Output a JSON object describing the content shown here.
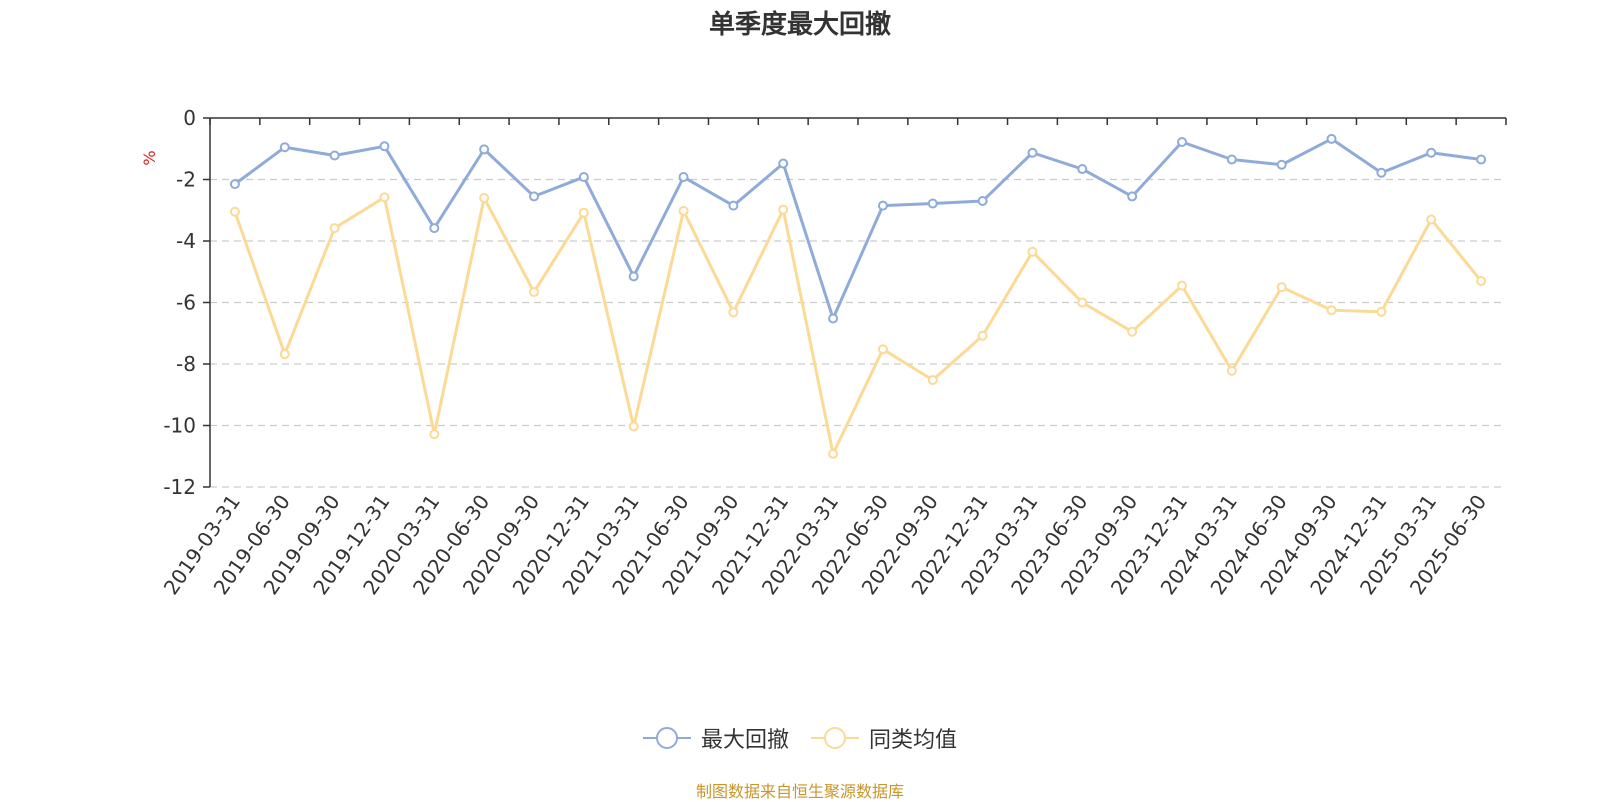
{
  "title": "单季度最大回撤",
  "source": "制图数据来自恒生聚源数据库",
  "colors": {
    "series1": "#8eabd9",
    "series2": "#fcd995",
    "axis": "#333333",
    "grid": "#cccccc",
    "unit": "#e02020"
  },
  "chart_data": {
    "type": "line",
    "title": "单季度最大回撤",
    "ylabel": "%",
    "ylim": [
      -12,
      0
    ],
    "yticks": [
      0,
      -2,
      -4,
      -6,
      -8,
      -10,
      -12
    ],
    "grid": true,
    "legend_position": "bottom-center",
    "categories": [
      "2019-03-31",
      "2019-06-30",
      "2019-09-30",
      "2019-12-31",
      "2020-03-31",
      "2020-06-30",
      "2020-09-30",
      "2020-12-31",
      "2021-03-31",
      "2021-06-30",
      "2021-09-30",
      "2021-12-31",
      "2022-03-31",
      "2022-06-30",
      "2022-09-30",
      "2022-12-31",
      "2023-03-31",
      "2023-06-30",
      "2023-09-30",
      "2023-12-31",
      "2024-03-31",
      "2024-06-30",
      "2024-09-30",
      "2024-12-31",
      "2025-03-31",
      "2025-06-30"
    ],
    "series": [
      {
        "name": "最大回撤",
        "values": [
          -2.15,
          -0.95,
          -1.22,
          -0.92,
          -3.58,
          -1.02,
          -2.55,
          -1.92,
          -5.15,
          -1.92,
          -2.85,
          -1.48,
          -6.52,
          -2.85,
          -2.78,
          -2.7,
          -1.13,
          -1.66,
          -2.55,
          -0.78,
          -1.35,
          -1.52,
          -0.68,
          -1.78,
          -1.13,
          -1.35
        ]
      },
      {
        "name": "同类均值",
        "values": [
          -3.05,
          -7.68,
          -3.58,
          -2.58,
          -10.28,
          -2.6,
          -5.66,
          -3.08,
          -10.03,
          -3.02,
          -6.32,
          -2.98,
          -10.92,
          -7.52,
          -8.52,
          -7.08,
          -4.35,
          -6.0,
          -6.95,
          -5.45,
          -8.22,
          -5.5,
          -6.25,
          -6.3,
          -3.3,
          -5.3
        ]
      }
    ]
  }
}
